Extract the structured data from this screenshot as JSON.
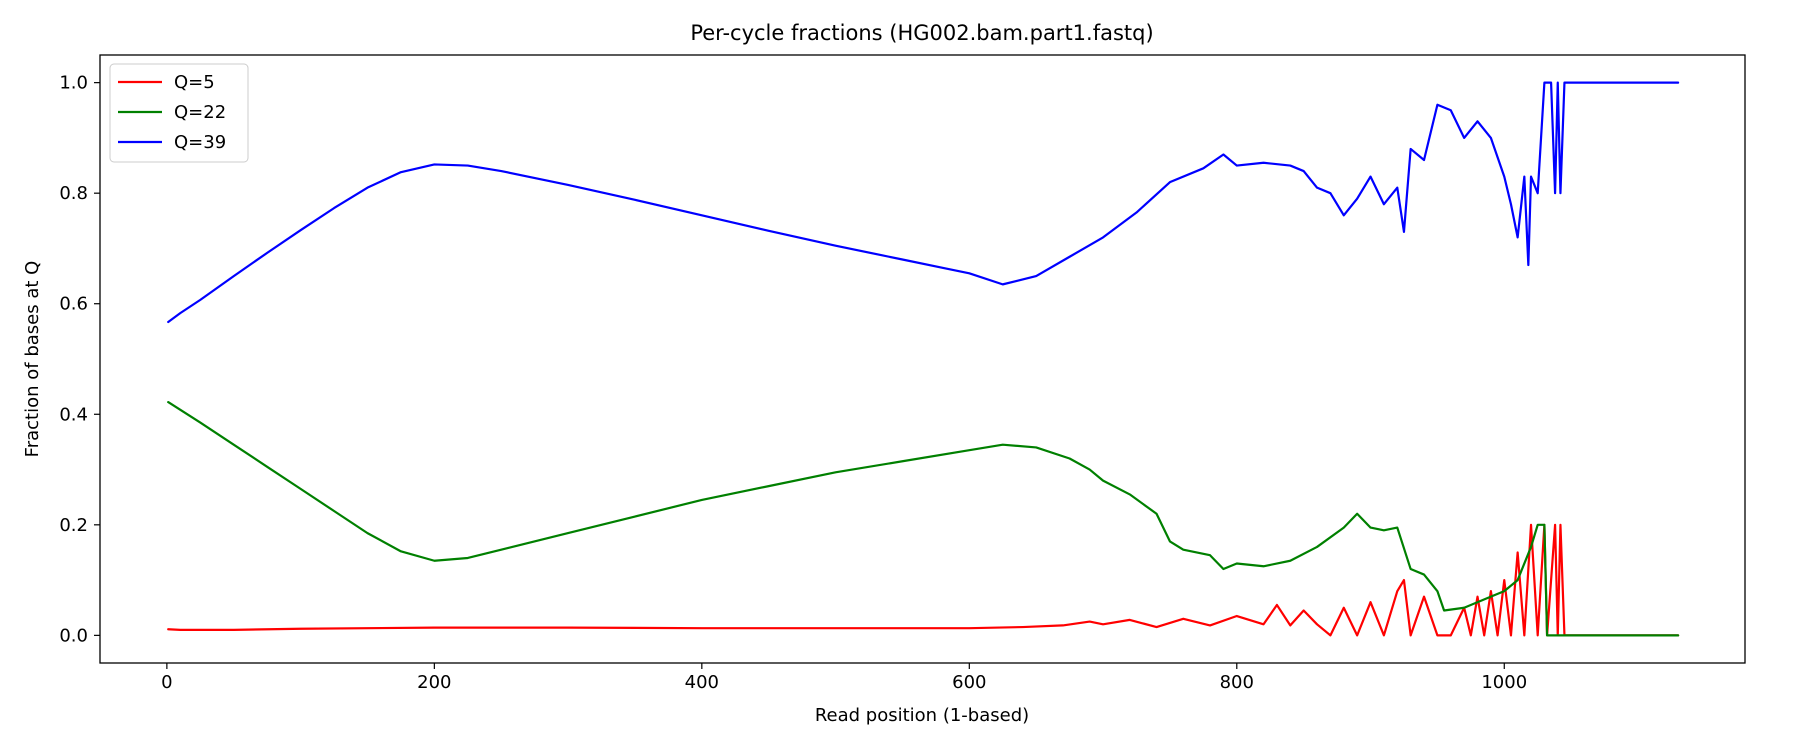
{
  "chart_data": {
    "type": "line",
    "title": "Per-cycle fractions (HG002.bam.part1.fastq)",
    "xlabel": "Read position (1-based)",
    "ylabel": "Fraction of bases at Q",
    "xlim": [
      -50,
      1180
    ],
    "ylim": [
      -0.05,
      1.05
    ],
    "x_ticks": [
      0,
      200,
      400,
      600,
      800,
      1000
    ],
    "x_tick_labels": [
      "0",
      "200",
      "400",
      "600",
      "800",
      "1000"
    ],
    "y_ticks": [
      0.0,
      0.2,
      0.4,
      0.6,
      0.8,
      1.0
    ],
    "y_tick_labels": [
      "0.0",
      "0.2",
      "0.4",
      "0.6",
      "0.8",
      "1.0"
    ],
    "grid": false,
    "legend": "top-left",
    "series": [
      {
        "name": "Q=5",
        "color": "#ff0000",
        "points": [
          [
            1,
            0.011
          ],
          [
            10,
            0.01
          ],
          [
            50,
            0.01
          ],
          [
            100,
            0.012
          ],
          [
            200,
            0.014
          ],
          [
            300,
            0.014
          ],
          [
            400,
            0.013
          ],
          [
            500,
            0.013
          ],
          [
            560,
            0.013
          ],
          [
            600,
            0.013
          ],
          [
            640,
            0.015
          ],
          [
            670,
            0.018
          ],
          [
            690,
            0.025
          ],
          [
            700,
            0.02
          ],
          [
            720,
            0.028
          ],
          [
            740,
            0.015
          ],
          [
            760,
            0.03
          ],
          [
            780,
            0.018
          ],
          [
            800,
            0.035
          ],
          [
            820,
            0.02
          ],
          [
            830,
            0.055
          ],
          [
            840,
            0.018
          ],
          [
            850,
            0.045
          ],
          [
            860,
            0.02
          ],
          [
            870,
            0.0
          ],
          [
            880,
            0.05
          ],
          [
            890,
            0.0
          ],
          [
            900,
            0.06
          ],
          [
            910,
            0.0
          ],
          [
            920,
            0.08
          ],
          [
            925,
            0.1
          ],
          [
            930,
            0.0
          ],
          [
            940,
            0.07
          ],
          [
            950,
            0.0
          ],
          [
            960,
            0.0
          ],
          [
            970,
            0.05
          ],
          [
            975,
            0.0
          ],
          [
            980,
            0.07
          ],
          [
            985,
            0.0
          ],
          [
            990,
            0.08
          ],
          [
            995,
            0.0
          ],
          [
            1000,
            0.1
          ],
          [
            1005,
            0.0
          ],
          [
            1010,
            0.15
          ],
          [
            1015,
            0.0
          ],
          [
            1020,
            0.2
          ],
          [
            1025,
            0.0
          ],
          [
            1030,
            0.2
          ],
          [
            1032,
            0.0
          ],
          [
            1038,
            0.2
          ],
          [
            1040,
            0.0
          ],
          [
            1042,
            0.2
          ],
          [
            1045,
            0.0
          ],
          [
            1060,
            0.0
          ],
          [
            1130,
            0.0
          ]
        ]
      },
      {
        "name": "Q=22",
        "color": "#008000",
        "points": [
          [
            1,
            0.422
          ],
          [
            25,
            0.385
          ],
          [
            50,
            0.345
          ],
          [
            75,
            0.305
          ],
          [
            100,
            0.265
          ],
          [
            125,
            0.225
          ],
          [
            150,
            0.185
          ],
          [
            175,
            0.152
          ],
          [
            200,
            0.135
          ],
          [
            225,
            0.14
          ],
          [
            250,
            0.155
          ],
          [
            300,
            0.185
          ],
          [
            350,
            0.215
          ],
          [
            400,
            0.245
          ],
          [
            450,
            0.27
          ],
          [
            500,
            0.295
          ],
          [
            550,
            0.315
          ],
          [
            600,
            0.335
          ],
          [
            625,
            0.345
          ],
          [
            650,
            0.34
          ],
          [
            675,
            0.32
          ],
          [
            690,
            0.3
          ],
          [
            700,
            0.28
          ],
          [
            720,
            0.255
          ],
          [
            740,
            0.22
          ],
          [
            750,
            0.17
          ],
          [
            760,
            0.155
          ],
          [
            780,
            0.145
          ],
          [
            790,
            0.12
          ],
          [
            800,
            0.13
          ],
          [
            820,
            0.125
          ],
          [
            840,
            0.135
          ],
          [
            860,
            0.16
          ],
          [
            880,
            0.195
          ],
          [
            890,
            0.22
          ],
          [
            900,
            0.195
          ],
          [
            910,
            0.19
          ],
          [
            920,
            0.195
          ],
          [
            930,
            0.12
          ],
          [
            940,
            0.11
          ],
          [
            950,
            0.08
          ],
          [
            955,
            0.045
          ],
          [
            970,
            0.05
          ],
          [
            990,
            0.07
          ],
          [
            1000,
            0.08
          ],
          [
            1010,
            0.1
          ],
          [
            1020,
            0.16
          ],
          [
            1025,
            0.2
          ],
          [
            1030,
            0.2
          ],
          [
            1032,
            0.0
          ],
          [
            1060,
            0.0
          ],
          [
            1130,
            0.0
          ]
        ]
      },
      {
        "name": "Q=39",
        "color": "#0000ff",
        "points": [
          [
            1,
            0.567
          ],
          [
            10,
            0.583
          ],
          [
            25,
            0.607
          ],
          [
            50,
            0.65
          ],
          [
            75,
            0.692
          ],
          [
            100,
            0.733
          ],
          [
            125,
            0.773
          ],
          [
            150,
            0.81
          ],
          [
            175,
            0.838
          ],
          [
            200,
            0.852
          ],
          [
            225,
            0.85
          ],
          [
            250,
            0.84
          ],
          [
            300,
            0.815
          ],
          [
            350,
            0.788
          ],
          [
            400,
            0.76
          ],
          [
            450,
            0.732
          ],
          [
            500,
            0.705
          ],
          [
            550,
            0.68
          ],
          [
            580,
            0.665
          ],
          [
            600,
            0.655
          ],
          [
            625,
            0.635
          ],
          [
            650,
            0.65
          ],
          [
            675,
            0.685
          ],
          [
            700,
            0.72
          ],
          [
            725,
            0.765
          ],
          [
            750,
            0.82
          ],
          [
            775,
            0.845
          ],
          [
            790,
            0.87
          ],
          [
            800,
            0.85
          ],
          [
            820,
            0.855
          ],
          [
            840,
            0.85
          ],
          [
            850,
            0.84
          ],
          [
            860,
            0.81
          ],
          [
            870,
            0.8
          ],
          [
            880,
            0.76
          ],
          [
            890,
            0.79
          ],
          [
            900,
            0.83
          ],
          [
            910,
            0.78
          ],
          [
            920,
            0.81
          ],
          [
            925,
            0.73
          ],
          [
            930,
            0.88
          ],
          [
            940,
            0.86
          ],
          [
            950,
            0.96
          ],
          [
            960,
            0.95
          ],
          [
            970,
            0.9
          ],
          [
            980,
            0.93
          ],
          [
            990,
            0.9
          ],
          [
            1000,
            0.83
          ],
          [
            1005,
            0.78
          ],
          [
            1010,
            0.72
          ],
          [
            1015,
            0.83
          ],
          [
            1018,
            0.67
          ],
          [
            1020,
            0.83
          ],
          [
            1025,
            0.8
          ],
          [
            1030,
            1.0
          ],
          [
            1035,
            1.0
          ],
          [
            1038,
            0.8
          ],
          [
            1040,
            1.0
          ],
          [
            1042,
            0.8
          ],
          [
            1045,
            1.0
          ],
          [
            1060,
            1.0
          ],
          [
            1130,
            1.0
          ]
        ]
      }
    ]
  }
}
